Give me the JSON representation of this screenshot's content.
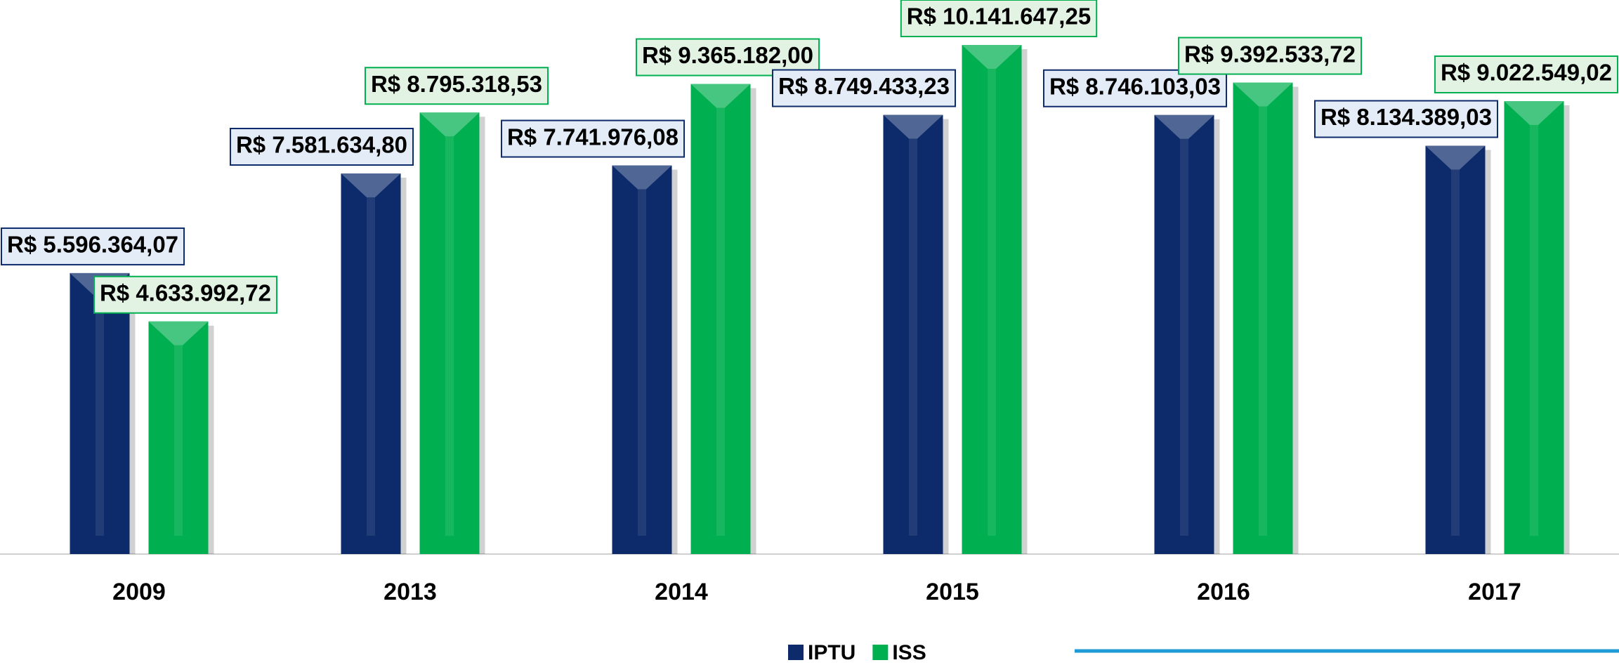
{
  "chart_data": {
    "type": "bar",
    "categories": [
      "2009",
      "2013",
      "2014",
      "2015",
      "2016",
      "2017"
    ],
    "series": [
      {
        "name": "IPTU",
        "color": "#0d2a6b",
        "values": [
          5596364.07,
          7581634.8,
          7741976.08,
          8749433.23,
          8746103.03,
          8134389.03
        ],
        "value_labels": [
          "R$ 5.596.364,07",
          "R$ 7.581.634,80",
          "R$ 7.741.976,08",
          "R$ 8.749.433,23",
          "R$ 8.746.103,03",
          "R$ 8.134.389,03"
        ]
      },
      {
        "name": "ISS",
        "color": "#00b050",
        "values": [
          4633992.72,
          8795318.53,
          9365182.0,
          10141647.25,
          9392533.72,
          9022549.02
        ],
        "value_labels": [
          "R$ 4.633.992,72",
          "R$ 8.795.318,53",
          "R$ 9.365.182,00",
          "R$ 10.141.647,25",
          "R$ 9.392.533,72",
          "R$ 9.022.549,02"
        ]
      }
    ],
    "legend": "bottom"
  }
}
